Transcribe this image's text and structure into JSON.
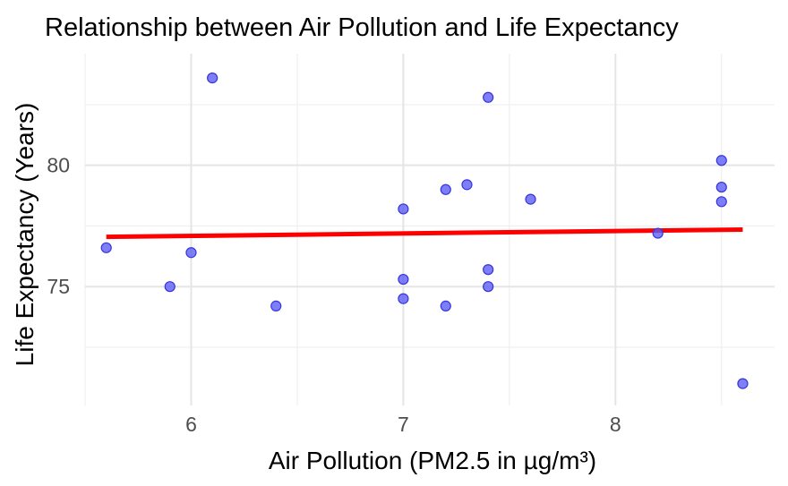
{
  "chart_data": {
    "type": "scatter",
    "title": "Relationship between Air Pollution and Life Expectancy",
    "xlabel": "Air Pollution (PM2.5 in µg/m³)",
    "ylabel": "Life Expectancy (Years)",
    "xlim": [
      5.5,
      8.75
    ],
    "ylim": [
      70.1,
      84.6
    ],
    "x_ticks": [
      6,
      7,
      8
    ],
    "y_ticks": [
      75,
      80
    ],
    "grid": true,
    "legend": "none",
    "point_color": "#5a5af5",
    "trend_color": "#ff0000",
    "points": [
      {
        "x": 5.6,
        "y": 76.6
      },
      {
        "x": 5.9,
        "y": 75.0
      },
      {
        "x": 6.0,
        "y": 76.4
      },
      {
        "x": 6.1,
        "y": 83.6
      },
      {
        "x": 6.4,
        "y": 74.2
      },
      {
        "x": 7.0,
        "y": 78.2
      },
      {
        "x": 7.0,
        "y": 75.3
      },
      {
        "x": 7.0,
        "y": 74.5
      },
      {
        "x": 7.2,
        "y": 79.0
      },
      {
        "x": 7.2,
        "y": 74.2
      },
      {
        "x": 7.3,
        "y": 79.2
      },
      {
        "x": 7.4,
        "y": 82.8
      },
      {
        "x": 7.4,
        "y": 75.7
      },
      {
        "x": 7.4,
        "y": 75.0
      },
      {
        "x": 7.6,
        "y": 78.6
      },
      {
        "x": 8.2,
        "y": 77.2
      },
      {
        "x": 8.5,
        "y": 80.2
      },
      {
        "x": 8.5,
        "y": 79.1
      },
      {
        "x": 8.5,
        "y": 78.5
      },
      {
        "x": 8.6,
        "y": 71.0
      }
    ],
    "trend_line": {
      "x": [
        5.6,
        8.6
      ],
      "y": [
        77.05,
        77.35
      ]
    }
  }
}
